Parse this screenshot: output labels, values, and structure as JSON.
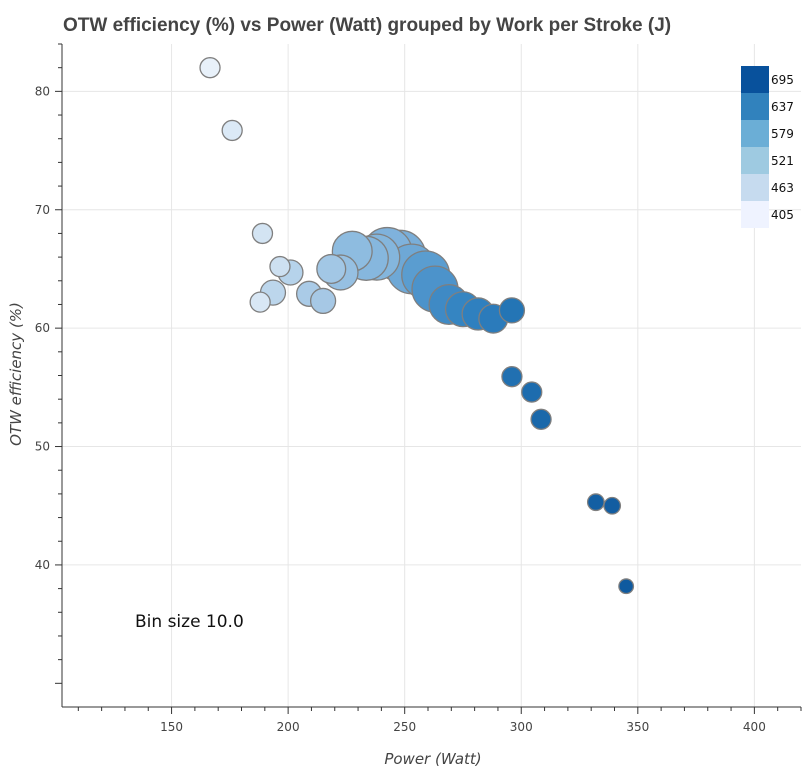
{
  "chart_data": {
    "type": "scatter",
    "title": "OTW efficiency (%) vs Power (Watt) grouped by Work per Stroke (J)",
    "xlabel": "Power (Watt)",
    "ylabel": "OTW efficiency (%)",
    "xlim": [
      103,
      420
    ],
    "ylim": [
      28,
      84
    ],
    "x_ticks": [
      150,
      200,
      250,
      300,
      350,
      400
    ],
    "y_ticks": [
      40,
      50,
      60,
      70,
      80
    ],
    "grid": true,
    "annotation": "Bin size 10.0",
    "color_bar": {
      "location": "top-right",
      "labels": [
        "695",
        "637",
        "579",
        "521",
        "463",
        "405"
      ],
      "colors": [
        "#08519c",
        "#3182bd",
        "#6baed6",
        "#9ecae1",
        "#c6dbef",
        "#eff3ff"
      ]
    },
    "points": [
      {
        "x": 166.5,
        "y": 82.0,
        "n": 1,
        "c": "#e8f1fa"
      },
      {
        "x": 176.0,
        "y": 76.7,
        "n": 1,
        "c": "#dbe9f6"
      },
      {
        "x": 189.0,
        "y": 68.0,
        "n": 1,
        "c": "#d3e4f3"
      },
      {
        "x": 196.5,
        "y": 65.2,
        "n": 1,
        "c": "#cde0f1"
      },
      {
        "x": 188.0,
        "y": 62.2,
        "n": 1,
        "c": "#d8e7f5"
      },
      {
        "x": 193.5,
        "y": 63.0,
        "n": 2,
        "c": "#bcd6ec"
      },
      {
        "x": 201.0,
        "y": 64.7,
        "n": 2,
        "c": "#b6d3eb"
      },
      {
        "x": 209.0,
        "y": 62.9,
        "n": 2,
        "c": "#aacbe7"
      },
      {
        "x": 215.0,
        "y": 62.3,
        "n": 2,
        "c": "#a6c8e5"
      },
      {
        "x": 218.5,
        "y": 65.0,
        "n": 3,
        "c": "#a2c7e5"
      },
      {
        "x": 222.5,
        "y": 64.7,
        "n": 5,
        "c": "#96c0e2"
      },
      {
        "x": 227.5,
        "y": 66.5,
        "n": 7,
        "c": "#8ebce0"
      },
      {
        "x": 233.5,
        "y": 65.9,
        "n": 9,
        "c": "#86b7de"
      },
      {
        "x": 242.5,
        "y": 66.4,
        "n": 12,
        "c": "#7fb2dc"
      },
      {
        "x": 248.0,
        "y": 66.1,
        "n": 13,
        "c": "#79aed9"
      },
      {
        "x": 238.0,
        "y": 66.0,
        "n": 10,
        "c": "#84b6dd"
      },
      {
        "x": 253.0,
        "y": 65.0,
        "n": 12,
        "c": "#6ea8d6"
      },
      {
        "x": 259.0,
        "y": 64.5,
        "n": 11,
        "c": "#5a9dd0"
      },
      {
        "x": 263.0,
        "y": 63.3,
        "n": 10,
        "c": "#4c93cb"
      },
      {
        "x": 269.0,
        "y": 62.0,
        "n": 7,
        "c": "#3f8ac5"
      },
      {
        "x": 275.0,
        "y": 61.6,
        "n": 5,
        "c": "#3585c2"
      },
      {
        "x": 281.5,
        "y": 61.2,
        "n": 4,
        "c": "#2f80bf"
      },
      {
        "x": 288.0,
        "y": 60.8,
        "n": 3,
        "c": "#2b7bbb"
      },
      {
        "x": 296.0,
        "y": 61.5,
        "n": 2,
        "c": "#2475b5"
      },
      {
        "x": 296.0,
        "y": 55.9,
        "n": 1,
        "c": "#2170b1"
      },
      {
        "x": 304.5,
        "y": 54.6,
        "n": 1,
        "c": "#1d6cae"
      },
      {
        "x": 308.5,
        "y": 52.3,
        "n": 1,
        "c": "#1a68aa"
      },
      {
        "x": 332.0,
        "y": 45.3,
        "n": 0.5,
        "c": "#135fa3"
      },
      {
        "x": 339.0,
        "y": 45.0,
        "n": 0.5,
        "c": "#125da1"
      },
      {
        "x": 345.0,
        "y": 38.2,
        "n": 0.3,
        "c": "#0f5a9f"
      }
    ]
  }
}
